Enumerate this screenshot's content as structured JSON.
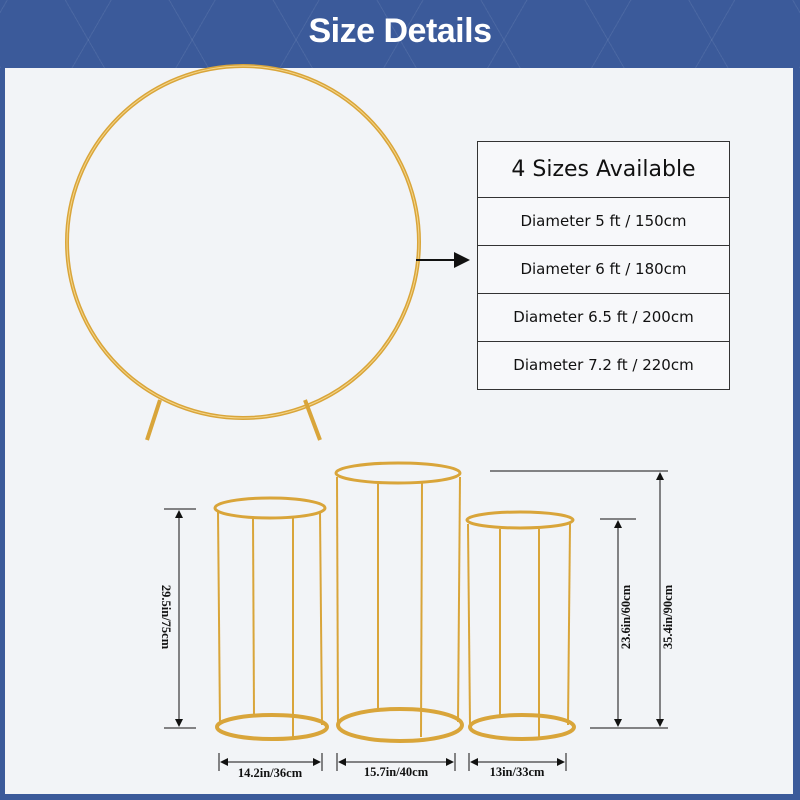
{
  "header": {
    "title": "Size Details"
  },
  "sizes_table": {
    "title": "4 Sizes Available",
    "rows": [
      "Diameter 5 ft / 150cm",
      "Diameter 6 ft / 180cm",
      "Diameter 6.5 ft / 200cm",
      "Diameter 7.2 ft / 220cm"
    ]
  },
  "dimensions": {
    "small_height": "29.5in/75cm",
    "mid_height": "23.6in/60cm",
    "tall_height": "35.4in/90cm",
    "small_width": "14.2in/36cm",
    "tall_width": "15.7in/40cm",
    "mid_width": "13in/33cm"
  },
  "colors": {
    "brand_blue": "#3b5a9a",
    "gold": "#d9a53a",
    "panel": "#f2f4f7"
  }
}
